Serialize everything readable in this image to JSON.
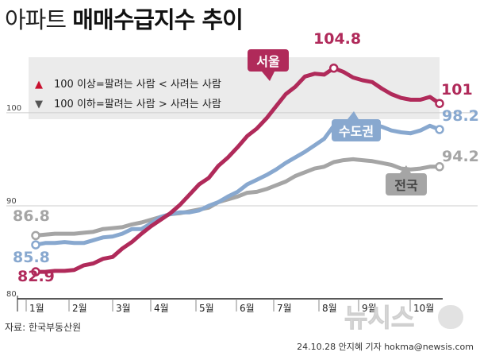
{
  "title": {
    "light": "아파트",
    "bold": "매매수급지수 추이"
  },
  "source": "자료: 한국부동산원",
  "credit": "24.10.28 안지혜 기자 hokma@newsis.com",
  "logo_text": "뉴시스",
  "colors": {
    "seoul": "#b02a5a",
    "capital": "#88a8cf",
    "national": "#a5a5a5",
    "grid": "#cccccc",
    "axis": "#222222",
    "legend_bg": "#ebebeb",
    "up_marker": "#c8102e",
    "down_marker": "#555555"
  },
  "chart_data": {
    "type": "line",
    "title": "아파트 매매수급지수 추이",
    "xlabel": "",
    "ylabel": "",
    "ylim": [
      80,
      107
    ],
    "yticks": [
      "80",
      "90",
      "100"
    ],
    "xticks": [
      "1월",
      "2월",
      "3월",
      "4월",
      "5월",
      "6월",
      "7월",
      "8월",
      "9월",
      "10월"
    ],
    "xlim": [
      1,
      43
    ],
    "legend": [
      {
        "marker": "▲",
        "text": "100 이상=팔려는 사람 < 사려는 사람"
      },
      {
        "marker": "▼",
        "text": "100 이하=팔려는 사람 > 사려는 사람"
      }
    ],
    "series": [
      {
        "name": "서울",
        "start_label": "82.9",
        "peak_label": "104.8",
        "end_label": "101",
        "values": [
          82.9,
          82.9,
          83.0,
          83.0,
          83.1,
          83.6,
          83.8,
          84.3,
          84.5,
          85.4,
          86.1,
          87.0,
          87.8,
          88.5,
          89.2,
          90.1,
          91.2,
          92.3,
          93.0,
          94.3,
          95.2,
          96.3,
          97.5,
          98.3,
          99.4,
          100.7,
          102.0,
          102.8,
          103.9,
          104.2,
          104.1,
          104.8,
          104.4,
          103.8,
          103.5,
          103.3,
          102.6,
          102.0,
          101.6,
          101.4,
          101.4,
          101.7,
          101.0
        ]
      },
      {
        "name": "수도권",
        "start_label": "85.8",
        "end_label": "98.2",
        "values": [
          85.8,
          86.0,
          86.0,
          86.1,
          86.0,
          86.0,
          86.3,
          86.6,
          86.7,
          87.0,
          87.5,
          87.5,
          88.1,
          88.8,
          89.1,
          89.3,
          89.3,
          89.5,
          90.0,
          90.4,
          91.0,
          91.5,
          92.3,
          92.8,
          93.3,
          93.9,
          94.6,
          95.2,
          95.8,
          96.5,
          97.2,
          98.6,
          98.9,
          99.0,
          98.8,
          98.8,
          98.5,
          98.1,
          97.9,
          97.8,
          98.1,
          98.6,
          98.2
        ]
      },
      {
        "name": "전국",
        "start_label": "86.8",
        "end_label": "94.2",
        "values": [
          86.8,
          86.9,
          87.0,
          87.0,
          87.0,
          87.1,
          87.2,
          87.5,
          87.6,
          87.7,
          88.0,
          88.2,
          88.5,
          88.8,
          89.1,
          89.2,
          89.4,
          89.6,
          89.8,
          90.4,
          90.7,
          91.0,
          91.4,
          91.5,
          91.8,
          92.2,
          92.6,
          93.2,
          93.6,
          94.0,
          94.2,
          94.7,
          94.9,
          95.0,
          94.9,
          94.8,
          94.6,
          94.4,
          94.0,
          93.9,
          94.0,
          94.2,
          94.2
        ]
      }
    ]
  }
}
